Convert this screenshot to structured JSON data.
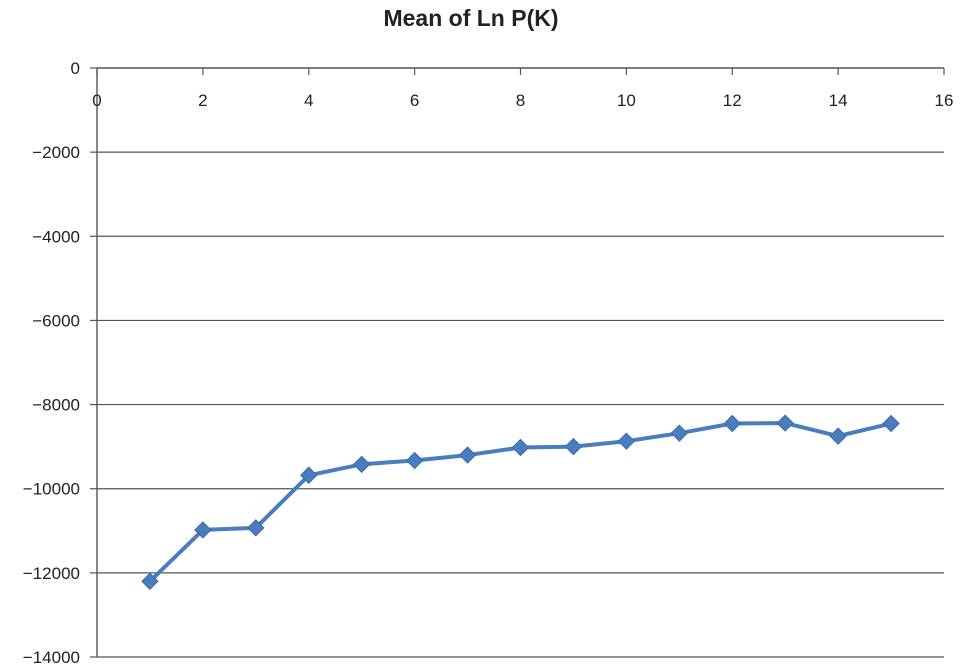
{
  "chart_data": {
    "type": "line",
    "title": "Mean of Ln P(K)",
    "xlabel": "",
    "ylabel": "",
    "xlim": [
      0,
      16
    ],
    "ylim": [
      -14000,
      0
    ],
    "xticks": [
      0,
      2,
      4,
      6,
      8,
      10,
      12,
      14,
      16
    ],
    "yticks": [
      0,
      -2000,
      -4000,
      -6000,
      -8000,
      -10000,
      -12000,
      -14000
    ],
    "xtick_labels": [
      "0",
      "2",
      "4",
      "6",
      "8",
      "10",
      "12",
      "14",
      "16"
    ],
    "ytick_labels": [
      "0",
      "−2000",
      "−4000",
      "−6000",
      "−8000",
      "−10000",
      "−12000",
      "−14000"
    ],
    "x_axis_position": "top",
    "grid": "horizontal",
    "legend": "none",
    "series": [
      {
        "marker": "diamond",
        "color": "#4a7cc0",
        "x": [
          1,
          2,
          3,
          4,
          5,
          6,
          7,
          8,
          9,
          10,
          11,
          12,
          13,
          14,
          15
        ],
        "y": [
          -12200,
          -10980,
          -10930,
          -9680,
          -9420,
          -9330,
          -9200,
          -9020,
          -9000,
          -8870,
          -8680,
          -8450,
          -8440,
          -8750,
          -8450
        ]
      }
    ]
  }
}
